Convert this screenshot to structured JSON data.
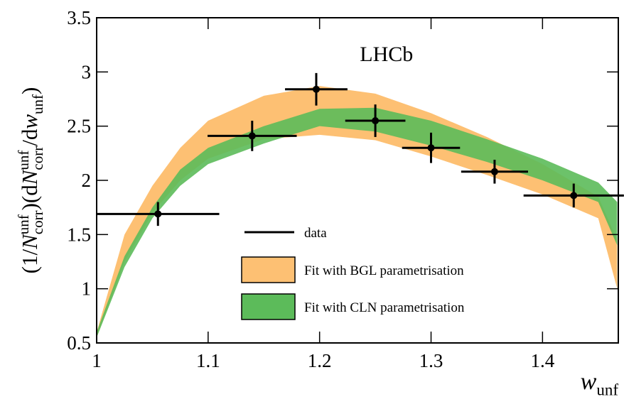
{
  "chart_data": {
    "type": "scatter",
    "annotation": "LHCb",
    "xlabel": [
      {
        "text": "w",
        "style": "italic"
      },
      {
        "text": "unf",
        "style": "sub"
      }
    ],
    "ylabel": [
      {
        "text": "(1/",
        "style": "normal"
      },
      {
        "text": "N",
        "style": "italic"
      },
      {
        "text": "unf",
        "style": "sup"
      },
      {
        "text": "corr",
        "style": "sub"
      },
      {
        "text": ")(d",
        "style": "normal"
      },
      {
        "text": "N",
        "style": "italic"
      },
      {
        "text": "unf",
        "style": "sup"
      },
      {
        "text": "corr",
        "style": "sub"
      },
      {
        "text": "/d",
        "style": "normal"
      },
      {
        "text": "w",
        "style": "italic"
      },
      {
        "text": "unf",
        "style": "sub"
      },
      {
        "text": ")",
        "style": "normal"
      }
    ],
    "xlim": [
      1,
      1.468
    ],
    "ylim": [
      0.5,
      3.5
    ],
    "xticks": [
      1,
      1.1,
      1.2,
      1.3,
      1.4
    ],
    "yticks": [
      0.5,
      1,
      1.5,
      2,
      2.5,
      3,
      3.5
    ],
    "legend": "lower center",
    "series": [
      {
        "name": "data",
        "color": "#000000",
        "x": [
          1.055,
          1.1395,
          1.197,
          1.25,
          1.3,
          1.357,
          1.428
        ],
        "values": [
          1.69,
          2.41,
          2.84,
          2.55,
          2.3,
          2.08,
          1.86
        ],
        "xerr": [
          0.055,
          0.04,
          0.028,
          0.027,
          0.026,
          0.03,
          0.045
        ],
        "yerr": [
          0.11,
          0.14,
          0.15,
          0.15,
          0.14,
          0.11,
          0.11
        ]
      }
    ],
    "band_x": [
      1.0,
      1.025,
      1.05,
      1.075,
      1.1,
      1.15,
      1.2,
      1.25,
      1.3,
      1.35,
      1.4,
      1.45,
      1.467
    ],
    "bands": [
      {
        "name": "Fit with BGL parametrisation",
        "color": "#fdc073",
        "lower": [
          0.55,
          1.25,
          1.7,
          2.0,
          2.2,
          2.38,
          2.42,
          2.37,
          2.22,
          2.05,
          1.87,
          1.65,
          1.0
        ],
        "upper": [
          0.6,
          1.5,
          1.95,
          2.3,
          2.55,
          2.78,
          2.87,
          2.8,
          2.62,
          2.4,
          2.15,
          1.85,
          1.45
        ]
      },
      {
        "name": "Fit with CLN parametrisation",
        "color": "#5cbb5a",
        "lower": [
          0.55,
          1.2,
          1.65,
          1.95,
          2.15,
          2.34,
          2.5,
          2.45,
          2.32,
          2.17,
          2.0,
          1.8,
          1.4
        ],
        "upper": [
          0.6,
          1.3,
          1.75,
          2.1,
          2.3,
          2.5,
          2.66,
          2.67,
          2.55,
          2.38,
          2.2,
          1.98,
          1.8
        ]
      }
    ]
  }
}
